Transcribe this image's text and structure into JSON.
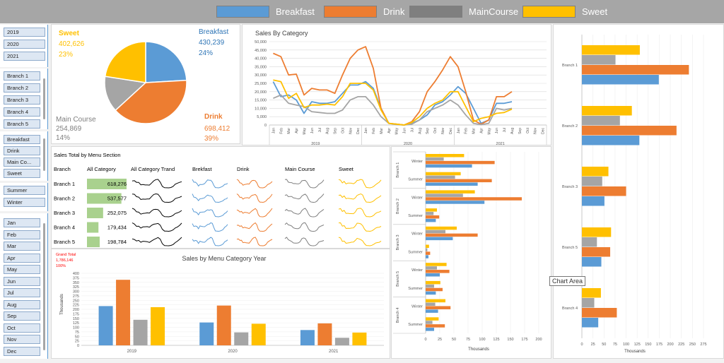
{
  "legend": [
    {
      "label": "Breakfast",
      "color": "#5b9bd5"
    },
    {
      "label": "Drink",
      "color": "#ed7d31"
    },
    {
      "label": "MainCourse",
      "color": "#a5a5a5"
    },
    {
      "label": "Sweet",
      "color": "#ffc000"
    }
  ],
  "slicers": {
    "years": [
      "2019",
      "2020",
      "2021"
    ],
    "branches": [
      "Branch 1",
      "Branch 2",
      "Branch 3",
      "Branch 4",
      "Branch 5"
    ],
    "categories": [
      "Breakfast",
      "Drink",
      "Main Co...",
      "Sweet"
    ],
    "seasons": [
      "Summer",
      "Winter"
    ],
    "months": [
      "Jan",
      "Feb",
      "Mar",
      "Apr",
      "May",
      "Jun",
      "Jul",
      "Aug",
      "Sep",
      "Oct",
      "Nov",
      "Dec"
    ]
  },
  "pie": {
    "labels": [
      {
        "name": "Sweet",
        "value": "402,626",
        "pct": "23%",
        "color": "#ffc000"
      },
      {
        "name": "Breakfast",
        "value": "430,239",
        "pct": "24%",
        "color": "#2e75b6"
      },
      {
        "name": "Main Course",
        "value": "254,869",
        "pct": "14%",
        "color": "#7f7f7f"
      },
      {
        "name": "Drink",
        "value": "698,412",
        "pct": "39%",
        "color": "#ed7d31"
      }
    ]
  },
  "table": {
    "title": "Sales Total by Menu Section",
    "headers": [
      "Branch",
      "All Category",
      "All Category Trand",
      "Brekfast",
      "Drink",
      "Main Course",
      "Sweet"
    ],
    "rows": [
      {
        "branch": "Branch 1",
        "total": "618,276",
        "value": 618276
      },
      {
        "branch": "Branch 2",
        "total": "537,577",
        "value": 537577
      },
      {
        "branch": "Branch 3",
        "total": "252,075",
        "value": 252075
      },
      {
        "branch": "Branch 4",
        "total": "179,434",
        "value": 179434
      },
      {
        "branch": "Branch 5",
        "total": "198,784",
        "value": 198784
      }
    ],
    "grand_total": {
      "label": "Grand Total",
      "value": "1,786,146",
      "pct": "100%"
    }
  },
  "tooltip": "Chart Area",
  "chart_data": [
    {
      "type": "pie",
      "categories": [
        "Breakfast",
        "Drink",
        "Main Course",
        "Sweet"
      ],
      "values": [
        430239,
        698412,
        254869,
        402626
      ]
    },
    {
      "type": "line",
      "title": "Sales By Category",
      "ylim": [
        0,
        50000
      ],
      "yticks": [
        "0",
        "5,000",
        "10,000",
        "15,000",
        "20,000",
        "25,000",
        "30,000",
        "35,000",
        "40,000",
        "45,000",
        "50,000"
      ],
      "months": [
        "Jan",
        "Feb",
        "Mar",
        "Apr",
        "May",
        "Jun",
        "Jul",
        "Aug",
        "Sep",
        "Oct",
        "Nov",
        "Dec"
      ],
      "years": [
        "2019",
        "2020",
        "2021"
      ],
      "series": [
        {
          "name": "Breakfast",
          "values": [
            26000,
            17000,
            18000,
            15000,
            7000,
            14000,
            13000,
            13000,
            14000,
            19000,
            24000,
            24000,
            26000,
            22000,
            10000,
            1000,
            500,
            0,
            1000,
            3000,
            6000,
            12000,
            14000,
            18000,
            23000,
            19000,
            10000,
            1000,
            3000,
            13000,
            13000,
            14000
          ]
        },
        {
          "name": "Drink",
          "values": [
            43000,
            41000,
            30000,
            30500,
            18000,
            22000,
            21000,
            21000,
            19000,
            30000,
            40000,
            45000,
            47000,
            34000,
            10000,
            1000,
            500,
            0,
            2000,
            8000,
            20000,
            26000,
            33000,
            41000,
            35000,
            20000,
            3000,
            500,
            3000,
            17000,
            17000,
            20000
          ]
        },
        {
          "name": "MainCourse",
          "values": [
            16000,
            18000,
            13000,
            12000,
            11000,
            8000,
            7500,
            7000,
            7000,
            9000,
            15000,
            17000,
            17000,
            12000,
            5000,
            1000,
            200,
            0,
            500,
            3000,
            8000,
            10000,
            12000,
            15000,
            12000,
            6000,
            1000,
            200,
            1000,
            10000,
            9000,
            10000
          ]
        },
        {
          "name": "Sweet",
          "values": [
            27000,
            26000,
            16000,
            19000,
            10500,
            12000,
            12000,
            12500,
            12000,
            17000,
            25000,
            25000,
            25000,
            21000,
            9000,
            1000,
            500,
            0,
            1500,
            5000,
            10000,
            13000,
            15000,
            20000,
            20000,
            11000,
            2000,
            4000,
            5000,
            7000,
            7500,
            9500
          ]
        }
      ]
    },
    {
      "type": "bar",
      "title": "Sales by Menu Category Year",
      "ylabel": "Thousands",
      "categories": [
        "2019",
        "2020",
        "2021"
      ],
      "ylim": [
        0,
        400
      ],
      "yticks": [
        0,
        25,
        50,
        75,
        100,
        125,
        150,
        175,
        200,
        225,
        250,
        275,
        300,
        325,
        350,
        375,
        400
      ],
      "series": [
        {
          "name": "Breakfast",
          "values": [
            218,
            127,
            85
          ]
        },
        {
          "name": "Drink",
          "values": [
            364,
            221,
            122
          ]
        },
        {
          "name": "MainCourse",
          "values": [
            142,
            72,
            42
          ]
        },
        {
          "name": "Sweet",
          "values": [
            212,
            120,
            71
          ]
        }
      ]
    },
    {
      "type": "bar",
      "xlabel": "Thousands",
      "xlim": [
        0,
        200
      ],
      "xticks": [
        0,
        25,
        50,
        75,
        100,
        125,
        150,
        175,
        200
      ],
      "groups": [
        {
          "branch": "Branch 1",
          "seasons": [
            {
              "season": "Winter",
              "values": [
                82,
                122,
                32,
                68
              ]
            },
            {
              "season": "Summer",
              "values": [
                92,
                117,
                52,
                62
              ]
            }
          ]
        },
        {
          "branch": "Branch 2",
          "seasons": [
            {
              "season": "Winter",
              "values": [
                104,
                170,
                66,
                87
              ]
            },
            {
              "season": "Summer",
              "values": [
                18,
                24,
                14,
                20
              ]
            }
          ]
        },
        {
          "branch": "Branch 3",
          "seasons": [
            {
              "season": "Winter",
              "values": [
                48,
                92,
                35,
                55
              ]
            },
            {
              "season": "Summer",
              "values": [
                5,
                8,
                3,
                6
              ]
            }
          ]
        },
        {
          "branch": "Branch 5",
          "seasons": [
            {
              "season": "Winter",
              "values": [
                25,
                42,
                20,
                37
              ]
            },
            {
              "season": "Summer",
              "values": [
                18,
                30,
                15,
                26
              ]
            }
          ]
        },
        {
          "branch": "Branch 4",
          "seasons": [
            {
              "season": "Winter",
              "values": [
                22,
                44,
                17,
                35
              ]
            },
            {
              "season": "Summer",
              "values": [
                15,
                34,
                12,
                23
              ]
            }
          ]
        }
      ]
    },
    {
      "type": "bar",
      "xlabel": "Thousands",
      "xlim": [
        0,
        275
      ],
      "xticks": [
        0,
        25,
        50,
        75,
        100,
        125,
        150,
        175,
        200,
        225,
        250,
        275
      ],
      "categories": [
        "Branch 1",
        "Branch 2",
        "Branch 3",
        "Branch 5",
        "Branch 4"
      ],
      "series": [
        {
          "name": "Breakfast",
          "values": [
            174,
            130,
            51,
            44,
            37
          ]
        },
        {
          "name": "Drink",
          "values": [
            242,
            214,
            100,
            64,
            79
          ]
        },
        {
          "name": "MainCourse",
          "values": [
            76,
            86,
            46,
            34,
            28
          ]
        },
        {
          "name": "Sweet",
          "values": [
            131,
            113,
            60,
            66,
            43
          ]
        }
      ]
    }
  ]
}
